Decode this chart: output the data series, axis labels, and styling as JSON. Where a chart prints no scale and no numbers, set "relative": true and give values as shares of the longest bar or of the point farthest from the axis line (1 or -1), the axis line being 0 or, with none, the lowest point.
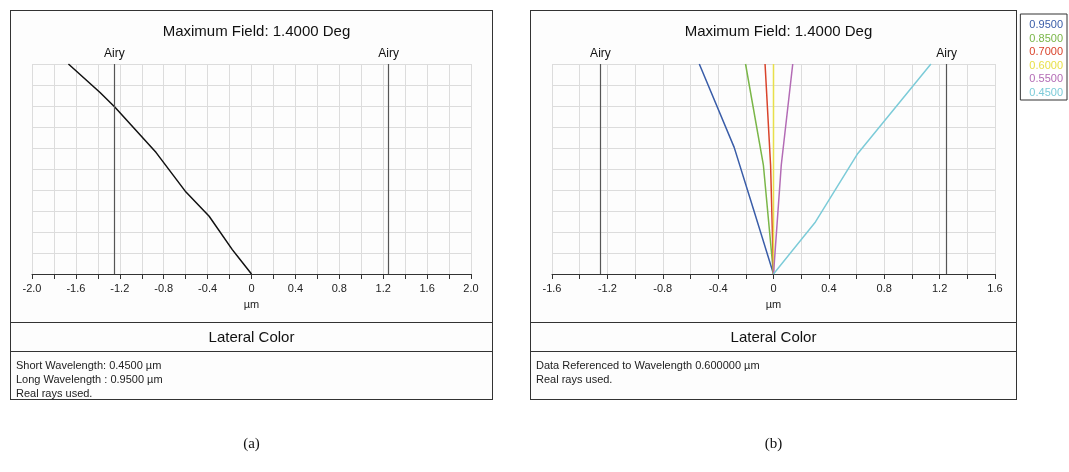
{
  "chart_data": [
    {
      "type": "line",
      "title": "Maximum Field: 1.4000 Deg",
      "xlabel": "µm",
      "relative": true,
      "tick_labels": "x",
      "grid": true,
      "legend": false,
      "marker": "none",
      "line_style": "solid",
      "xlim": [
        -2,
        2
      ],
      "xticks": [
        {
          "value": -2,
          "label": "-2.0"
        },
        {
          "value": -1.8,
          "label": null
        },
        {
          "value": -1.6,
          "label": "-1.6"
        },
        {
          "value": -1.4,
          "label": null
        },
        {
          "value": -1.2,
          "label": "-1.2"
        },
        {
          "value": -1,
          "label": null
        },
        {
          "value": -0.8,
          "label": "-0.8"
        },
        {
          "value": -0.6,
          "label": null
        },
        {
          "value": -0.4,
          "label": "-0.4"
        },
        {
          "value": -0.2,
          "label": null
        },
        0,
        {
          "value": 0.2,
          "label": null
        },
        {
          "value": 0.4,
          "label": "0.4"
        },
        {
          "value": 0.6,
          "label": null
        },
        {
          "value": 0.8,
          "label": "0.8"
        },
        {
          "value": 1,
          "label": null
        },
        {
          "value": 1.2,
          "label": "1.2"
        },
        {
          "value": 1.4,
          "label": null
        },
        {
          "value": 1.6,
          "label": "1.6"
        },
        {
          "value": 1.8,
          "label": null
        },
        {
          "value": 2,
          "label": "2.0"
        }
      ],
      "ref_lines": [
        {
          "axis": "x",
          "value": -1.25,
          "label": "Airy",
          "color": "#555555"
        },
        {
          "axis": "x",
          "value": 1.25,
          "label": "Airy",
          "color": "#555555"
        }
      ],
      "series": [
        {
          "color": "#111111",
          "x": [
            0,
            -0.175,
            -0.386,
            -0.597,
            -0.869,
            -1.246,
            -1.38,
            -1.668
          ],
          "values": [
            0,
            0.116,
            0.275,
            0.39,
            0.578,
            0.795,
            0.864,
            1
          ]
        }
      ],
      "annotations": [
        "Lateral Color",
        "Short Wavelength: 0.4500 µm",
        "Long Wavelength : 0.9500 µm",
        "Real rays used.",
        "(a)"
      ]
    },
    {
      "type": "line",
      "title": "Maximum Field: 1.4000 Deg",
      "xlabel": "µm",
      "relative": true,
      "tick_labels": "x",
      "grid": true,
      "legend": "top right",
      "marker": "none",
      "line_style": "solid",
      "xlim": [
        -1.6,
        1.6
      ],
      "xticks": [
        {
          "value": -1.6,
          "label": "-1.6"
        },
        {
          "value": -1.4,
          "label": null
        },
        {
          "value": -1.2,
          "label": "-1.2"
        },
        {
          "value": -1,
          "label": null
        },
        {
          "value": -0.8,
          "label": "-0.8"
        },
        {
          "value": -0.6,
          "label": null
        },
        {
          "value": -0.4,
          "label": "-0.4"
        },
        {
          "value": -0.2,
          "label": null
        },
        0,
        {
          "value": 0.2,
          "label": null
        },
        {
          "value": 0.4,
          "label": "0.4"
        },
        {
          "value": 0.6,
          "label": null
        },
        {
          "value": 0.8,
          "label": "0.8"
        },
        {
          "value": 1,
          "label": null
        },
        {
          "value": 1.2,
          "label": "1.2"
        },
        {
          "value": 1.4,
          "label": null
        },
        {
          "value": 1.6,
          "label": "1.6"
        }
      ],
      "ref_lines": [
        {
          "axis": "x",
          "value": -1.25,
          "label": "Airy",
          "color": "#555555"
        },
        {
          "axis": "x",
          "value": 1.25,
          "label": "Airy",
          "color": "#555555"
        }
      ],
      "series": [
        {
          "name": "0.9500",
          "color": "#3a5da8",
          "x": [
            0,
            -0.143,
            -0.284,
            -0.536
          ],
          "values": [
            0,
            0.305,
            0.603,
            1
          ]
        },
        {
          "name": "0.8500",
          "color": "#7ab648",
          "x": [
            0,
            -0.073,
            -0.202
          ],
          "values": [
            0,
            0.518,
            1
          ]
        },
        {
          "name": "0.7000",
          "color": "#d9432b",
          "x": [
            0,
            -0.021,
            -0.061
          ],
          "values": [
            0,
            0.518,
            1
          ]
        },
        {
          "name": "0.6000",
          "color": "#e8e04a",
          "x": [
            0,
            0
          ],
          "values": [
            0,
            1
          ]
        },
        {
          "name": "0.5500",
          "color": "#b36bb5",
          "x": [
            0,
            0.056,
            0.139
          ],
          "values": [
            0,
            0.518,
            1
          ]
        },
        {
          "name": "0.4500",
          "color": "#7ccbd8",
          "x": [
            0,
            0.303,
            0.609,
            1.137
          ],
          "values": [
            0,
            0.248,
            0.574,
            1
          ]
        }
      ],
      "annotations": [
        "Lateral Color",
        "Data Referenced to Wavelength 0.600000 µm",
        "Real rays used.",
        "(b)"
      ]
    }
  ]
}
